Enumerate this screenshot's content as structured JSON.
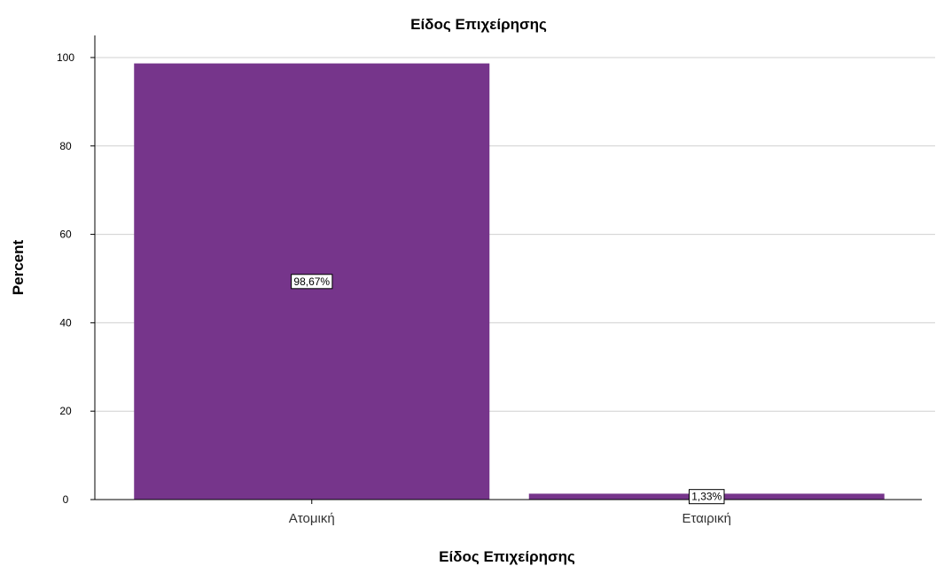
{
  "chart_data": {
    "type": "bar",
    "title": "Είδος Επιχείρησης",
    "xlabel": "Είδος Επιχείρησης",
    "ylabel": "Percent",
    "categories": [
      "Ατομική",
      "Εταιρική"
    ],
    "values": [
      98.67,
      1.33
    ],
    "data_labels": [
      "98,67%",
      "1,33%"
    ],
    "ylim": [
      0,
      105
    ],
    "yticks": [
      0,
      20,
      40,
      60,
      80,
      100
    ],
    "grid": true,
    "bar_color": "#76358B"
  }
}
